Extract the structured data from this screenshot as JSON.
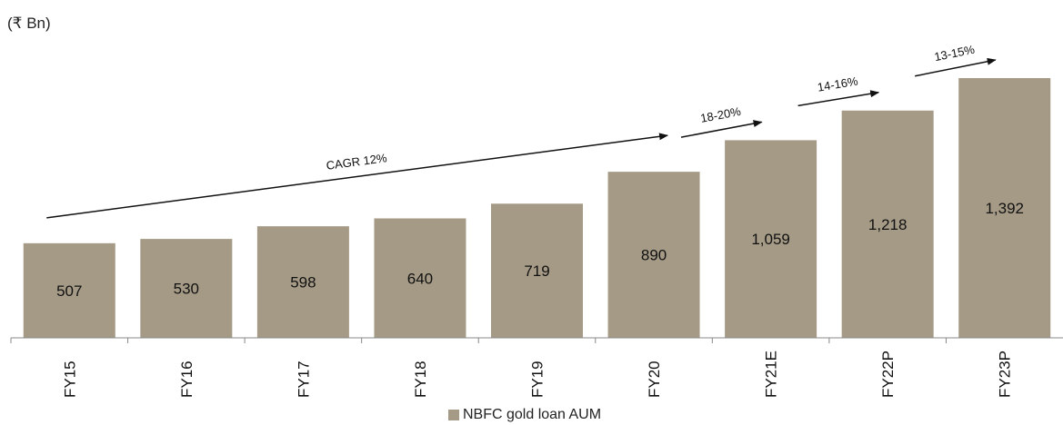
{
  "chart_data": {
    "type": "bar",
    "unit_label": "(₹ Bn)",
    "categories": [
      "FY15",
      "FY16",
      "FY17",
      "FY18",
      "FY19",
      "FY20",
      "FY21E",
      "FY22P",
      "FY23P"
    ],
    "series": [
      {
        "name": "NBFC gold loan AUM",
        "values": [
          507,
          530,
          598,
          640,
          719,
          890,
          1059,
          1218,
          1392
        ],
        "value_labels": [
          "507",
          "530",
          "598",
          "640",
          "719",
          "890",
          "1,059",
          "1,218",
          "1,392"
        ],
        "color": "#a59a86"
      }
    ],
    "ylim": [
      0,
      1450
    ],
    "grid": false,
    "legend": "bottom",
    "annotations": [
      {
        "text": "CAGR 12%",
        "from": "FY15",
        "to": "FY20"
      },
      {
        "text": "18-20%",
        "from": "FY20",
        "to": "FY21E"
      },
      {
        "text": "14-16%",
        "from": "FY21E",
        "to": "FY22P"
      },
      {
        "text": "13-15%",
        "from": "FY22P",
        "to": "FY23P"
      }
    ]
  }
}
